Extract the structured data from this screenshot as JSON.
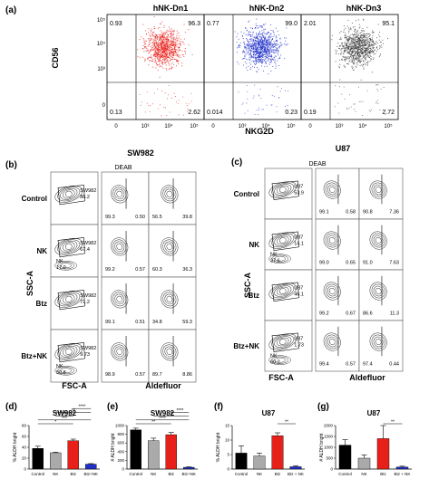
{
  "panel_letters": {
    "a": "(a)",
    "b": "(b)",
    "c": "(c)",
    "d": "(d)",
    "e": "(e)",
    "f": "(f)",
    "g": "(g)"
  },
  "panel_a": {
    "subtitles": [
      "hNK-Dn1",
      "hNK-Dn2",
      "hNK-Dn3"
    ],
    "ylabel": "CD56",
    "xlabel": "NKG2D",
    "colors": [
      "#e8201a",
      "#1f2fc8",
      "#3a3a3a"
    ],
    "quadrants": [
      {
        "ul": "0.93",
        "ur": "96.3",
        "ll": "0.13",
        "lr": "2.62"
      },
      {
        "ul": "0.77",
        "ur": "99.0",
        "ll": "0.014",
        "lr": "0.23"
      },
      {
        "ul": "2.01",
        "ur": "95.1",
        "ll": "0.19",
        "lr": "2.72"
      }
    ],
    "yticks": [
      "10⁵",
      "10⁴",
      "10³",
      "0"
    ],
    "xticks": [
      "0",
      "10³",
      "10⁴",
      "10⁵"
    ]
  },
  "panel_b": {
    "title": "SW982",
    "deab": "DEAB",
    "rows": [
      "Control",
      "NK",
      "Btz",
      "Btz+NK"
    ],
    "ylabel": "SSC-A",
    "xlabel_left": "FSC-A",
    "xlabel_right": "Aldefluor",
    "gates": [
      [
        "SW982\n86.2",
        "SW982\n67.4",
        "SW982\n71.2",
        "SW982\n9.73"
      ],
      [
        "",
        "NK\n17.0",
        "",
        "NK\n50.8"
      ]
    ],
    "deab_vals": [
      [
        "99.3",
        "0.50"
      ],
      [
        "99.2",
        "0.57"
      ],
      [
        "99.1",
        "0.51"
      ],
      [
        "98.9",
        "0.57"
      ]
    ],
    "ald_vals": [
      [
        "56.5",
        "39.8"
      ],
      [
        "60.3",
        "36.3"
      ],
      [
        "34.8",
        "59.3"
      ],
      [
        "89.7",
        "8.86"
      ]
    ]
  },
  "panel_c": {
    "title": "U87",
    "deab": "DEAB",
    "rows": [
      "Control",
      "NK",
      "Btz",
      "Btz+NK"
    ],
    "ylabel": "SSC-A",
    "xlabel_left": "FSC-A",
    "xlabel_right": "Aldefluor",
    "gates": [
      [
        "U87\n53.9",
        "U87\n14.1",
        "U87\n46.1",
        "U87\n1.73"
      ],
      [
        "",
        "NK\n37.6",
        "",
        "NK\n60.2"
      ]
    ],
    "deab_vals": [
      [
        "99.1",
        "0.58"
      ],
      [
        "99.0",
        "0.65"
      ],
      [
        "99.2",
        "0.67"
      ],
      [
        "99.4",
        "0.57"
      ]
    ],
    "ald_vals": [
      [
        "90.8",
        "7.36"
      ],
      [
        "91.0",
        "7.63"
      ],
      [
        "86.6",
        "11.3"
      ],
      [
        "97.4",
        "0.44"
      ]
    ]
  },
  "chart_data": [
    {
      "panel": "d",
      "type": "bar",
      "title": "SW982",
      "ylabel": "% ALDH bright",
      "categories": [
        "Control",
        "NK",
        "Btz",
        "Btz+NK"
      ],
      "values": [
        38,
        30,
        52,
        9
      ],
      "errors": [
        4,
        1,
        3,
        1
      ],
      "ylim": [
        0,
        80
      ],
      "yticks": [
        "0",
        "20",
        "40",
        "60",
        "80"
      ],
      "colors": [
        "#000000",
        "#aaaaaa",
        "#e8201a",
        "#1f2fc8"
      ],
      "significance": [
        [
          "Control",
          "Btz",
          "*"
        ],
        [
          "Control",
          "Btz+NK",
          "***"
        ],
        [
          "NK",
          "Btz",
          "**"
        ],
        [
          "NK",
          "Btz+NK",
          "**"
        ],
        [
          "Btz",
          "Btz+NK",
          "****"
        ]
      ]
    },
    {
      "panel": "e",
      "type": "bar",
      "title": "SW982",
      "ylabel": "# ALDH bright",
      "categories": [
        "Control",
        "NK",
        "Btz",
        "Btz+NK"
      ],
      "values": [
        900,
        650,
        790,
        40
      ],
      "errors": [
        40,
        60,
        50,
        10
      ],
      "ylim": [
        0,
        1000
      ],
      "yticks": [
        "0",
        "200",
        "400",
        "600",
        "800",
        "1000"
      ],
      "colors": [
        "#000000",
        "#aaaaaa",
        "#e8201a",
        "#1f2fc8"
      ],
      "significance": [
        [
          "Control",
          "Btz",
          "**"
        ],
        [
          "Control",
          "Btz+NK",
          "****"
        ],
        [
          "NK",
          "Btz+NK",
          "*"
        ],
        [
          "Btz",
          "Btz+NK",
          "****"
        ]
      ]
    },
    {
      "panel": "f",
      "type": "bar",
      "title": "U87",
      "ylabel": "% ALDH bright",
      "categories": [
        "Control",
        "NK",
        "Btz",
        "Btz + NK"
      ],
      "values": [
        5.5,
        4.5,
        11.5,
        0.8
      ],
      "errors": [
        2.5,
        1,
        1,
        0.3
      ],
      "ylim": [
        0,
        15
      ],
      "yticks": [
        "0",
        "5",
        "10",
        "15"
      ],
      "colors": [
        "#000000",
        "#aaaaaa",
        "#e8201a",
        "#1f2fc8"
      ],
      "significance": [
        [
          "Btz",
          "Btz + NK",
          "**"
        ]
      ]
    },
    {
      "panel": "g",
      "type": "bar",
      "title": "U87",
      "ylabel": "# ALDH bright",
      "categories": [
        "Control",
        "NK",
        "Btz",
        "Btz + NK"
      ],
      "values": [
        1100,
        500,
        1400,
        90
      ],
      "errors": [
        250,
        150,
        600,
        40
      ],
      "ylim": [
        0,
        2000
      ],
      "yticks": [
        "0",
        "500",
        "1000",
        "1500",
        "2000"
      ],
      "colors": [
        "#000000",
        "#aaaaaa",
        "#e8201a",
        "#1f2fc8"
      ],
      "significance": [
        [
          "Btz",
          "Btz + NK",
          "**"
        ]
      ]
    }
  ]
}
